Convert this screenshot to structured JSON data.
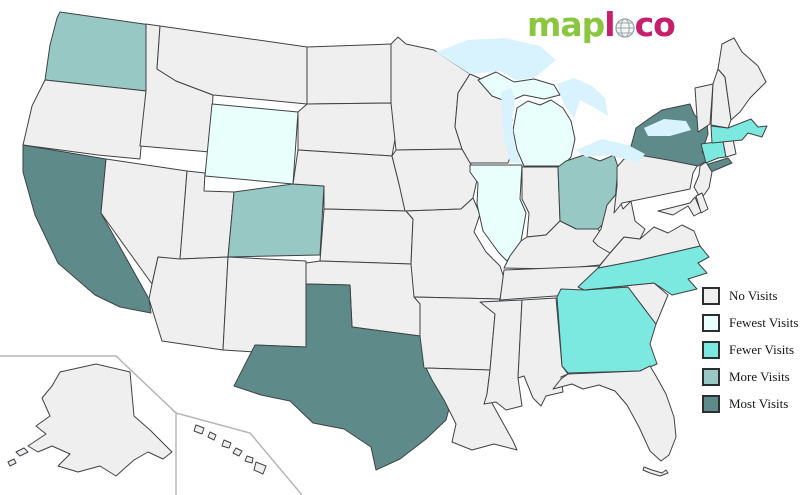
{
  "logo": {
    "green_text": "map",
    "pink_text_1": "l",
    "pink_text_2": "co",
    "green_color": "#8cc63f",
    "pink_color": "#c81e6e",
    "globe_icon": "globe-icon"
  },
  "legend": {
    "items": [
      {
        "key": "no",
        "label": "No Visits",
        "color": "#efefef"
      },
      {
        "key": "fewest",
        "label": "Fewest Visits",
        "color": "#e8fffc"
      },
      {
        "key": "fewer",
        "label": "Fewer Visits",
        "color": "#7ce9e1"
      },
      {
        "key": "more",
        "label": "More Visits",
        "color": "#97c8c4"
      },
      {
        "key": "most",
        "label": "Most Visits",
        "color": "#5e8b8a"
      }
    ]
  },
  "map": {
    "border_color": "#3f4245",
    "lake_color": "#d8f3fd",
    "inset_line_color": "#b5b5b5",
    "states": [
      {
        "id": "WA",
        "name": "Washington",
        "level": "more"
      },
      {
        "id": "OR",
        "name": "Oregon",
        "level": "no"
      },
      {
        "id": "CA",
        "name": "California",
        "level": "most"
      },
      {
        "id": "NV",
        "name": "Nevada",
        "level": "no"
      },
      {
        "id": "ID",
        "name": "Idaho",
        "level": "no"
      },
      {
        "id": "MT",
        "name": "Montana",
        "level": "no"
      },
      {
        "id": "WY",
        "name": "Wyoming",
        "level": "fewest"
      },
      {
        "id": "UT",
        "name": "Utah",
        "level": "no"
      },
      {
        "id": "CO",
        "name": "Colorado",
        "level": "more"
      },
      {
        "id": "AZ",
        "name": "Arizona",
        "level": "no"
      },
      {
        "id": "NM",
        "name": "New Mexico",
        "level": "no"
      },
      {
        "id": "ND",
        "name": "North Dakota",
        "level": "no"
      },
      {
        "id": "SD",
        "name": "South Dakota",
        "level": "no"
      },
      {
        "id": "NE",
        "name": "Nebraska",
        "level": "no"
      },
      {
        "id": "KS",
        "name": "Kansas",
        "level": "no"
      },
      {
        "id": "OK",
        "name": "Oklahoma",
        "level": "no"
      },
      {
        "id": "TX",
        "name": "Texas",
        "level": "most"
      },
      {
        "id": "MN",
        "name": "Minnesota",
        "level": "no"
      },
      {
        "id": "IA",
        "name": "Iowa",
        "level": "no"
      },
      {
        "id": "MO",
        "name": "Missouri",
        "level": "no"
      },
      {
        "id": "AR",
        "name": "Arkansas",
        "level": "no"
      },
      {
        "id": "LA",
        "name": "Louisiana",
        "level": "no"
      },
      {
        "id": "WI",
        "name": "Wisconsin",
        "level": "no"
      },
      {
        "id": "IL",
        "name": "Illinois",
        "level": "fewest"
      },
      {
        "id": "MI",
        "name": "Michigan",
        "level": "fewest"
      },
      {
        "id": "IN",
        "name": "Indiana",
        "level": "no"
      },
      {
        "id": "OH",
        "name": "Ohio",
        "level": "more"
      },
      {
        "id": "KY",
        "name": "Kentucky",
        "level": "no"
      },
      {
        "id": "TN",
        "name": "Tennessee",
        "level": "no"
      },
      {
        "id": "MS",
        "name": "Mississippi",
        "level": "no"
      },
      {
        "id": "AL",
        "name": "Alabama",
        "level": "no"
      },
      {
        "id": "GA",
        "name": "Georgia",
        "level": "fewer"
      },
      {
        "id": "FL",
        "name": "Florida",
        "level": "no"
      },
      {
        "id": "SC",
        "name": "South Carolina",
        "level": "no"
      },
      {
        "id": "NC",
        "name": "North Carolina",
        "level": "fewer"
      },
      {
        "id": "VA",
        "name": "Virginia",
        "level": "no"
      },
      {
        "id": "WV",
        "name": "West Virginia",
        "level": "no"
      },
      {
        "id": "PA",
        "name": "Pennsylvania",
        "level": "no"
      },
      {
        "id": "NY",
        "name": "New York",
        "level": "most"
      },
      {
        "id": "NJ",
        "name": "New Jersey",
        "level": "no"
      },
      {
        "id": "DE",
        "name": "Delaware",
        "level": "no"
      },
      {
        "id": "MD",
        "name": "Maryland",
        "level": "no"
      },
      {
        "id": "CT",
        "name": "Connecticut",
        "level": "fewer"
      },
      {
        "id": "RI",
        "name": "Rhode Island",
        "level": "no"
      },
      {
        "id": "MA",
        "name": "Massachusetts",
        "level": "fewer"
      },
      {
        "id": "VT",
        "name": "Vermont",
        "level": "no"
      },
      {
        "id": "NH",
        "name": "New Hampshire",
        "level": "no"
      },
      {
        "id": "ME",
        "name": "Maine",
        "level": "no"
      },
      {
        "id": "AK",
        "name": "Alaska",
        "level": "no"
      },
      {
        "id": "HI",
        "name": "Hawaii",
        "level": "no"
      }
    ]
  }
}
